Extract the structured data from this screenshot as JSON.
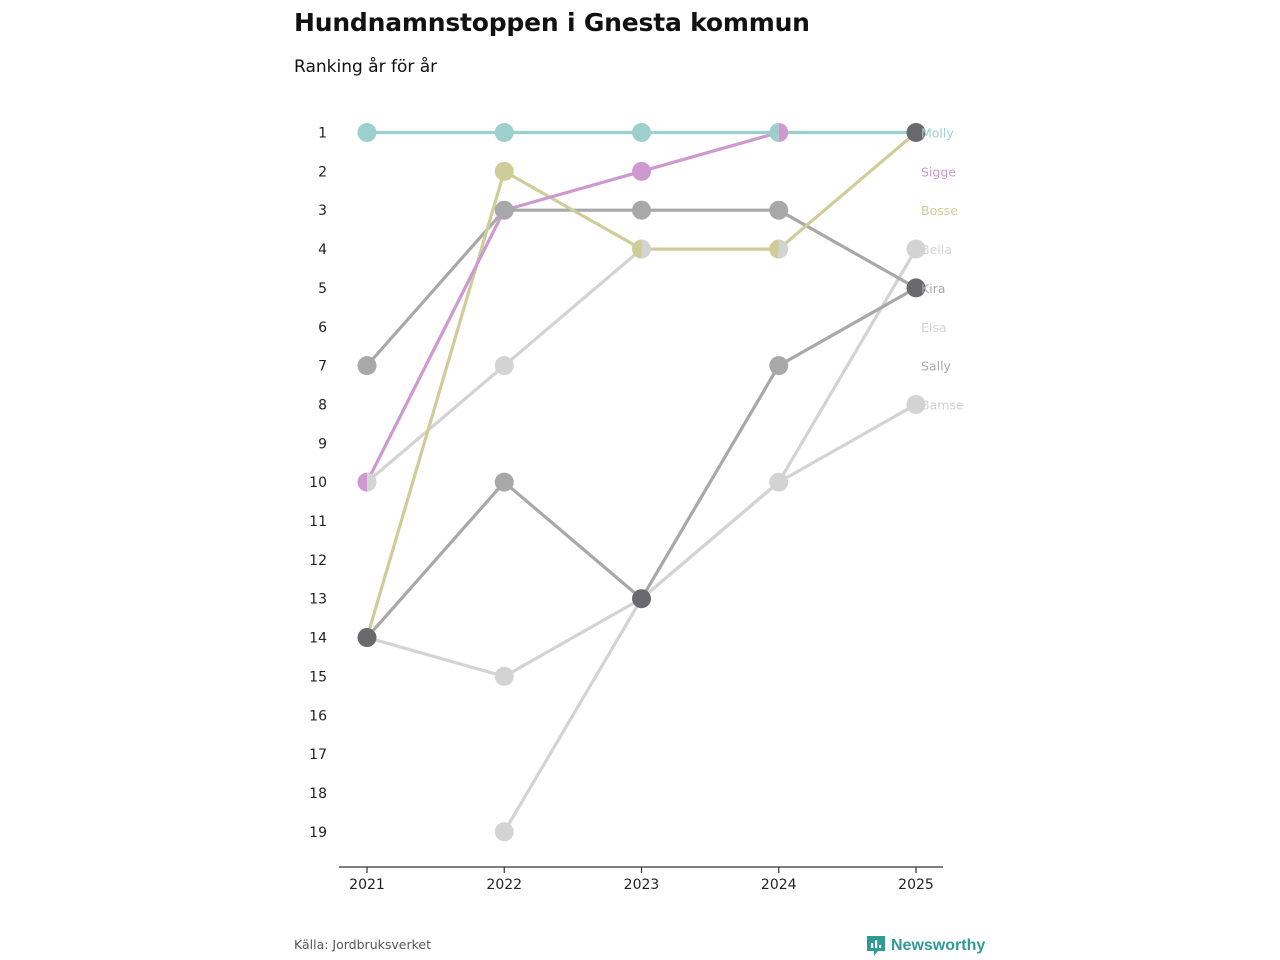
{
  "header": {
    "title": "Hundnamnstoppen i Gnesta kommun",
    "subtitle": "Ranking år för år"
  },
  "footer": {
    "source": "Källa: Jordbruksverket",
    "brand": "Newsworthy",
    "brand_icon": "newsworthy-logo-icon"
  },
  "colors": {
    "molly": "#9dcfcf",
    "sigge": "#cd99cf",
    "bosse": "#cfcc9a",
    "light_gray": "#d3d3d3",
    "mid_gray": "#a8a8aa",
    "dark_gray": "#6a6a6e",
    "axis": "#333333",
    "brand": "#2f9a96"
  },
  "chart_data": {
    "type": "line",
    "subtype": "bump",
    "title": "Hundnamnstoppen i Gnesta kommun",
    "subtitle": "Ranking år för år",
    "xlabel": "",
    "ylabel": "",
    "x": [
      "2021",
      "2022",
      "2023",
      "2024",
      "2025"
    ],
    "y_ticks": [
      1,
      2,
      3,
      4,
      5,
      6,
      7,
      8,
      9,
      10,
      11,
      12,
      13,
      14,
      15,
      16,
      17,
      18,
      19
    ],
    "ylim": [
      1,
      19
    ],
    "y_reversed": true,
    "grid": false,
    "legend_placement": "end-labels-right",
    "series": [
      {
        "name": "Bamse",
        "color": "#d3d3d3",
        "values": [
          14,
          15,
          null,
          null,
          8
        ],
        "gap_connect": false,
        "points": [
          [
            0,
            14
          ],
          [
            1,
            15
          ],
          [
            2,
            13
          ],
          [
            3,
            10
          ],
          [
            4,
            8
          ]
        ]
      },
      {
        "name": "Elsa",
        "color": "#d3d3d3",
        "values": [
          10,
          7,
          4,
          4,
          null
        ]
      },
      {
        "name": "Bella",
        "color": "#d3d3d3",
        "values": [
          null,
          19,
          13,
          10,
          4
        ]
      },
      {
        "name": "Sally",
        "color": "#a8a8aa",
        "values": [
          14,
          10,
          13,
          7,
          5
        ]
      },
      {
        "name": "Kira",
        "color": "#a8a8aa",
        "values": [
          7,
          3,
          3,
          3,
          5
        ]
      },
      {
        "name": "Bosse",
        "color": "#cfcc9a",
        "values": [
          14,
          2,
          4,
          4,
          1
        ]
      },
      {
        "name": "Sigge",
        "color": "#cd99cf",
        "values": [
          10,
          3,
          2,
          1,
          null
        ]
      },
      {
        "name": "Molly",
        "color": "#9dcfcf",
        "values": [
          1,
          1,
          1,
          1,
          1
        ]
      }
    ],
    "end_labels": [
      {
        "name": "Molly",
        "rank": 1,
        "color": "#9dcfcf"
      },
      {
        "name": "Sigge",
        "rank": 2,
        "color": "#cd99cf"
      },
      {
        "name": "Bosse",
        "rank": 3,
        "color": "#cfcc9a"
      },
      {
        "name": "Bella",
        "rank": 4,
        "color": "#d3d3d3"
      },
      {
        "name": "Kira",
        "rank": 5,
        "color": "#a8a8aa"
      },
      {
        "name": "Elsa",
        "rank": 6,
        "color": "#d3d3d3"
      },
      {
        "name": "Sally",
        "rank": 7,
        "color": "#a8a8aa"
      },
      {
        "name": "Bamse",
        "rank": 8,
        "color": "#d3d3d3"
      }
    ],
    "markers": [
      {
        "x": 0,
        "y": 1,
        "color": "#9dcfcf"
      },
      {
        "x": 0,
        "y": 7,
        "color": "#a8a8aa"
      },
      {
        "x": 0,
        "y": 10,
        "left": "#cd99cf",
        "right": "#d3d3d3"
      },
      {
        "x": 0,
        "y": 14,
        "color": "#6a6a6e"
      },
      {
        "x": 1,
        "y": 1,
        "color": "#9dcfcf"
      },
      {
        "x": 1,
        "y": 2,
        "color": "#cfcc9a"
      },
      {
        "x": 1,
        "y": 3,
        "color": "#a8a8aa"
      },
      {
        "x": 1,
        "y": 7,
        "color": "#d3d3d3"
      },
      {
        "x": 1,
        "y": 10,
        "color": "#a8a8aa"
      },
      {
        "x": 1,
        "y": 15,
        "color": "#d3d3d3"
      },
      {
        "x": 1,
        "y": 19,
        "color": "#d3d3d3"
      },
      {
        "x": 2,
        "y": 1,
        "color": "#9dcfcf"
      },
      {
        "x": 2,
        "y": 2,
        "color": "#cd99cf"
      },
      {
        "x": 2,
        "y": 3,
        "color": "#a8a8aa"
      },
      {
        "x": 2,
        "y": 4,
        "left": "#cfcc9a",
        "right": "#d3d3d3"
      },
      {
        "x": 2,
        "y": 13,
        "color": "#6a6a6e"
      },
      {
        "x": 3,
        "y": 1,
        "left": "#9dcfcf",
        "right": "#cd99cf"
      },
      {
        "x": 3,
        "y": 3,
        "color": "#a8a8aa"
      },
      {
        "x": 3,
        "y": 4,
        "left": "#cfcc9a",
        "right": "#d3d3d3"
      },
      {
        "x": 3,
        "y": 7,
        "color": "#a8a8aa"
      },
      {
        "x": 3,
        "y": 10,
        "color": "#d3d3d3"
      },
      {
        "x": 4,
        "y": 1,
        "color": "#6a6a6e"
      },
      {
        "x": 4,
        "y": 4,
        "color": "#d3d3d3"
      },
      {
        "x": 4,
        "y": 5,
        "color": "#6a6a6e"
      },
      {
        "x": 4,
        "y": 8,
        "color": "#d3d3d3"
      }
    ]
  }
}
